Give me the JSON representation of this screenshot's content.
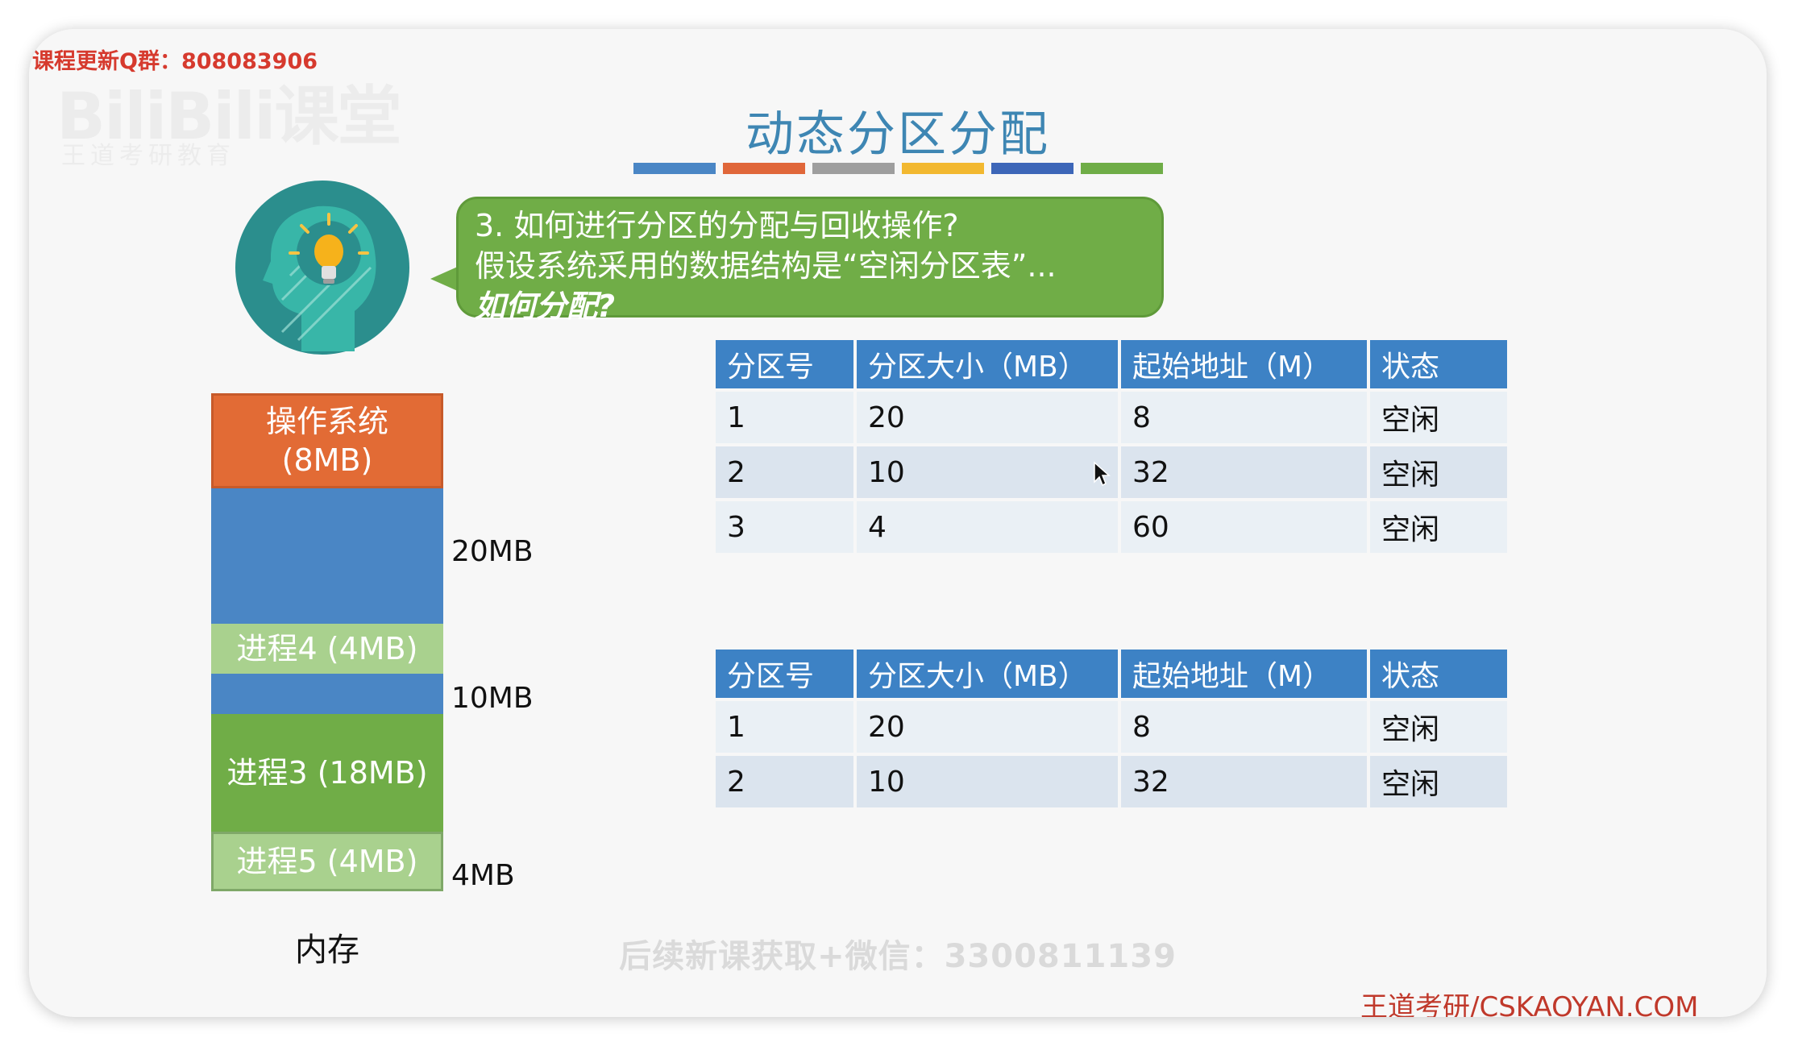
{
  "overlay": {
    "qq_group": "课程更新Q群：808083906",
    "watermark_logo": "BiliBili课堂",
    "watermark_sub": "王道考研教育",
    "footer_watermark": "后续新课获取+微信：3300811139",
    "brand": "王道考研/CSKAOYAN.COM"
  },
  "slide": {
    "title": "动态分区分配",
    "title_color": "#3e86b3",
    "color_bars": [
      "#4a86c5",
      "#e0673a",
      "#9e9e9e",
      "#f2b830",
      "#3d66b8",
      "#6fad47"
    ]
  },
  "bubble": {
    "line1": "3. 如何进行分区的分配与回收操作?",
    "line2": "假设系统采用的数据结构是“空闲分区表”...",
    "line3": "如何分配?"
  },
  "icon": {
    "name": "thinking-head-lightbulb-icon"
  },
  "memory": {
    "caption": "内存",
    "blocks": [
      {
        "label": "操作系统\n(8MB)",
        "color": "#e26b35"
      },
      {
        "label": "",
        "color": "#4a86c5"
      },
      {
        "label": "进程4 (4MB)",
        "color": "#a9d18e"
      },
      {
        "label": "",
        "color": "#4a86c5"
      },
      {
        "label": "进程3 (18MB)",
        "color": "#70ad47"
      },
      {
        "label": "进程5 (4MB)",
        "color": "#a9d18e"
      }
    ],
    "size_labels": [
      "20MB",
      "10MB",
      "4MB"
    ]
  },
  "table_top": {
    "headers": [
      "分区号",
      "分区大小（MB）",
      "起始地址（M）",
      "状态"
    ],
    "rows": [
      [
        "1",
        "20",
        "8",
        "空闲"
      ],
      [
        "2",
        "10",
        "32",
        "空闲"
      ],
      [
        "3",
        "4",
        "60",
        "空闲"
      ]
    ]
  },
  "table_bottom": {
    "headers": [
      "分区号",
      "分区大小（MB）",
      "起始地址（M）",
      "状态"
    ],
    "rows": [
      [
        "1",
        "20",
        "8",
        "空闲"
      ],
      [
        "2",
        "10",
        "32",
        "空闲"
      ]
    ]
  }
}
